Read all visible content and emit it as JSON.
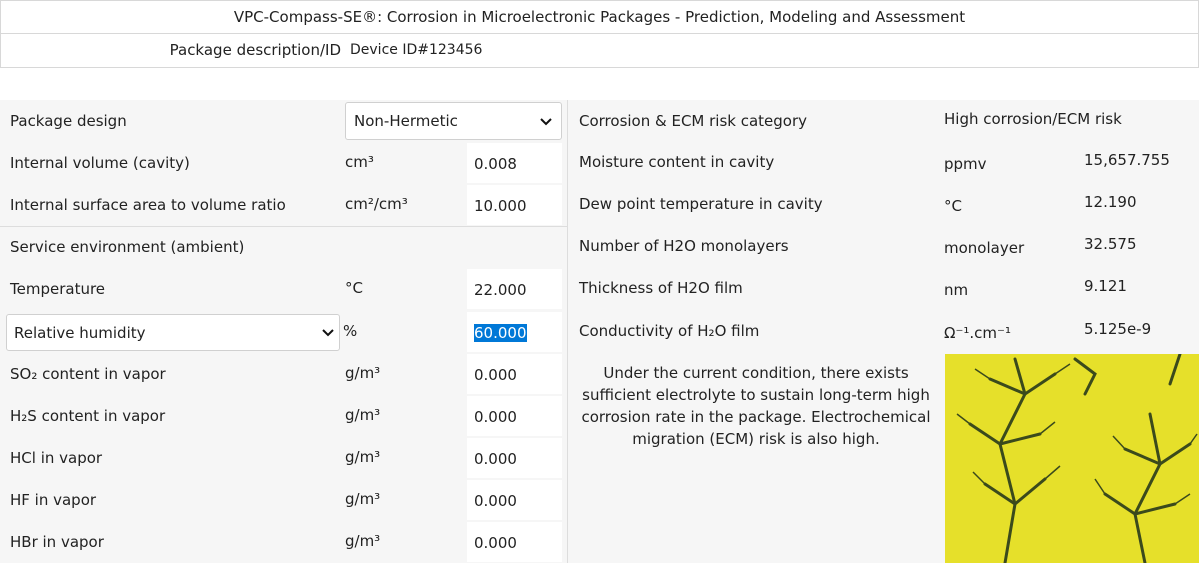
{
  "title": "VPC-Compass-SE®: Corrosion in Microelectronic Packages - Prediction, Modeling and Assessment",
  "package_description": {
    "label": "Package description/ID",
    "value": "Device ID#123456"
  },
  "left": {
    "package_design": {
      "label": "Package design",
      "value": "Non-Hermetic"
    },
    "geometry": [
      {
        "label": "Internal volume (cavity)",
        "unit": "cm³",
        "value": "0.008"
      },
      {
        "label": "Internal surface area to volume ratio",
        "unit": "cm²/cm³",
        "value": "10.000"
      }
    ],
    "section": "Service environment (ambient)",
    "environment": [
      {
        "label": "Temperature",
        "unit": "°C",
        "value": "22.000"
      },
      {
        "label": "Relative humidity",
        "unit": "%",
        "value": "60.000",
        "dropdown": true,
        "highlighted": true
      },
      {
        "label": "SO₂ content in vapor",
        "unit": "g/m³",
        "value": "0.000"
      },
      {
        "label": "H₂S content in vapor",
        "unit": "g/m³",
        "value": "0.000"
      },
      {
        "label": "HCl in vapor",
        "unit": "g/m³",
        "value": "0.000"
      },
      {
        "label": "HF in vapor",
        "unit": "g/m³",
        "value": "0.000"
      },
      {
        "label": "HBr in vapor",
        "unit": "g/m³",
        "value": "0.000"
      }
    ]
  },
  "right": {
    "risk": {
      "label": "Corrosion & ECM risk category",
      "value": "High corrosion/ECM risk"
    },
    "results": [
      {
        "label": "Moisture content in cavity",
        "unit": "ppmv",
        "value": "15,657.755"
      },
      {
        "label": "Dew point temperature in cavity",
        "unit": "°C",
        "value": "12.190"
      },
      {
        "label": "Number of H2O monolayers",
        "unit": "monolayer",
        "value": "32.575"
      },
      {
        "label": "Thickness of H2O film",
        "unit": "nm",
        "value": "9.121"
      },
      {
        "label": "Conductivity of H₂O film",
        "unit": "Ω⁻¹.cm⁻¹",
        "value": "5.125e-9"
      }
    ],
    "message": "Under the current condition, there exists sufficient electrolyte to sustain long-term high corrosion rate in the package. Electrochemical migration (ECM) risk is also high."
  }
}
